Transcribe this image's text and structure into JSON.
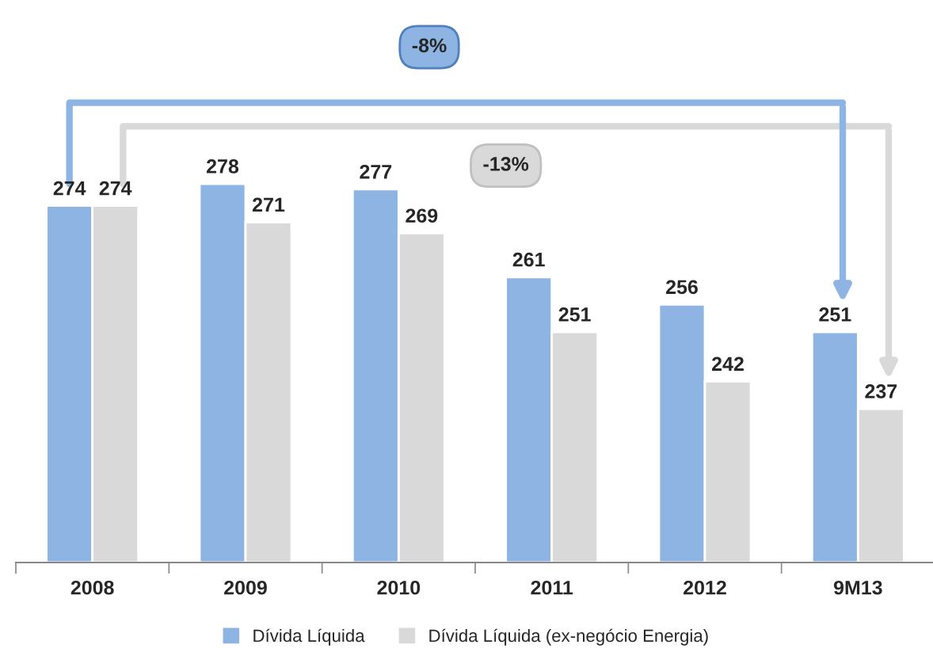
{
  "chart_data": {
    "type": "bar",
    "categories": [
      "2008",
      "2009",
      "2010",
      "2011",
      "2012",
      "9M13"
    ],
    "series": [
      {
        "name": "Dívida Líquida",
        "color": "#8eb4e3",
        "values": [
          274,
          278,
          277,
          261,
          256,
          251
        ]
      },
      {
        "name": "Dívida Líquida (ex-negócio Energia)",
        "color": "#d9d9d9",
        "values": [
          274,
          271,
          269,
          251,
          242,
          237
        ]
      }
    ],
    "ylim": [
      209,
      278
    ],
    "data_labels": true,
    "legend": "bottom",
    "grid": false,
    "annotations": [
      "-8%",
      "-13%"
    ]
  }
}
